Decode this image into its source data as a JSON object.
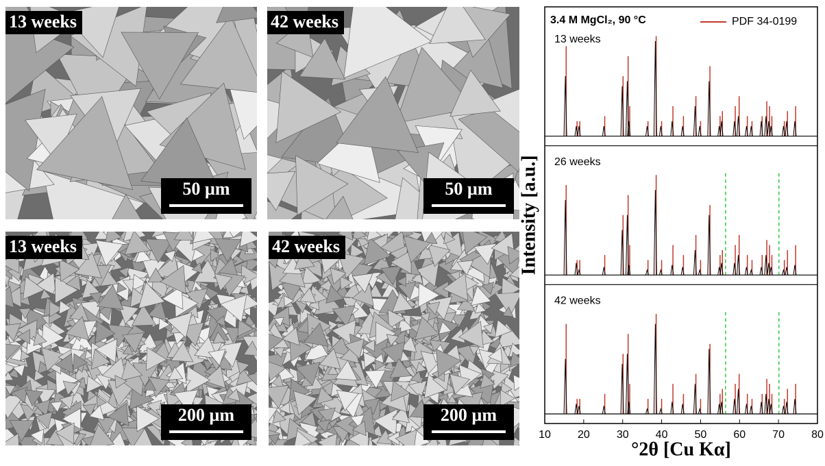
{
  "sem_panels": [
    {
      "label": "13 weeks",
      "scale_bar": "50 µm"
    },
    {
      "label": "42 weeks",
      "scale_bar": "50 µm"
    },
    {
      "label": "13 weeks",
      "scale_bar": "200 µm"
    },
    {
      "label": "42 weeks",
      "scale_bar": "200 µm"
    }
  ],
  "chart_data": {
    "type": "stick",
    "title": "3.4 M MgCl₂, 90 °C",
    "xlabel": "°2θ [Cu Kα]",
    "ylabel": "Intensity [a.u.]",
    "xlim": [
      10,
      80
    ],
    "xticks": [
      10,
      20,
      30,
      40,
      50,
      60,
      70,
      80
    ],
    "ylim": [
      0,
      1
    ],
    "reference": {
      "name": "PDF 34-0199",
      "color": "#c0392b",
      "x": [
        15.5,
        18.3,
        19.0,
        25.4,
        30.1,
        31.4,
        31.8,
        36.5,
        38.6,
        40.0,
        42.9,
        45.6,
        48.8,
        50.0,
        52.4,
        55.0,
        55.6,
        58.9,
        59.9,
        62.0,
        63.2,
        65.8,
        67.0,
        67.7,
        68.3,
        71.5,
        72.3,
        74.4
      ],
      "values": [
        0.9,
        0.15,
        0.15,
        0.2,
        0.6,
        0.8,
        0.3,
        0.15,
        1.0,
        0.15,
        0.3,
        0.2,
        0.4,
        0.15,
        0.7,
        0.2,
        0.25,
        0.3,
        0.4,
        0.2,
        0.15,
        0.2,
        0.35,
        0.3,
        0.2,
        0.15,
        0.25,
        0.3
      ]
    },
    "patterns": [
      {
        "name": "13 weeks",
        "color": "#000000",
        "values": [
          0.6,
          0.1,
          0.1,
          0.1,
          0.5,
          0.55,
          0.15,
          0.1,
          0.95,
          0.1,
          0.15,
          0.1,
          0.3,
          0.1,
          0.55,
          0.1,
          0.15,
          0.15,
          0.2,
          0.1,
          0.1,
          0.15,
          0.2,
          0.15,
          0.1,
          0.1,
          0.15,
          0.15
        ]
      },
      {
        "name": "26 weeks",
        "color": "#000000",
        "values": [
          0.75,
          0.12,
          0.05,
          0.08,
          0.45,
          0.6,
          0.1,
          0.05,
          0.85,
          0.05,
          0.1,
          0.08,
          0.25,
          0.05,
          0.6,
          0.08,
          0.12,
          0.12,
          0.2,
          0.08,
          0.05,
          0.08,
          0.2,
          0.12,
          0.08,
          0.05,
          0.08,
          0.1
        ]
      },
      {
        "name": "42 weeks",
        "color": "#000000",
        "values": [
          0.55,
          0.1,
          0.08,
          0.08,
          0.5,
          0.6,
          0.12,
          0.05,
          0.9,
          0.05,
          0.12,
          0.1,
          0.3,
          0.05,
          0.65,
          0.1,
          0.12,
          0.15,
          0.25,
          0.1,
          0.08,
          0.12,
          0.2,
          0.15,
          0.1,
          0.08,
          0.12,
          0.15
        ]
      }
    ],
    "marker_lines": {
      "color": "#2ecc40",
      "x": [
        56.4,
        70.1
      ],
      "panels": [
        1,
        2
      ]
    }
  }
}
